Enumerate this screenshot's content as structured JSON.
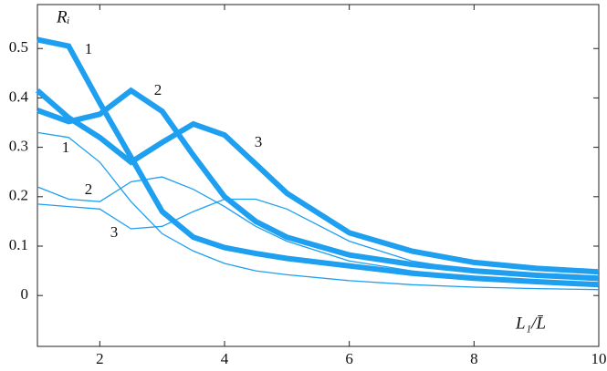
{
  "chart_data": {
    "type": "line",
    "ylabel": "Rᵢ",
    "xlabel": "L₁/L̄",
    "x": [
      1,
      1.5,
      2,
      2.5,
      3,
      3.5,
      4,
      4.5,
      5,
      6,
      7,
      8,
      9,
      10
    ],
    "series": [
      {
        "name": "1",
        "color": "#1e9ff0",
        "values": [
          0.518,
          0.505,
          0.39,
          0.28,
          0.17,
          0.118,
          0.097,
          0.085,
          0.075,
          0.06,
          0.045,
          0.035,
          0.028,
          0.022
        ]
      },
      {
        "name": "2",
        "color": "#1e9ff0",
        "values": [
          0.375,
          0.352,
          0.367,
          0.415,
          0.373,
          0.284,
          0.2,
          0.15,
          0.118,
          0.082,
          0.063,
          0.05,
          0.041,
          0.035
        ]
      },
      {
        "name": "3",
        "color": "#1e9ff0",
        "values": [
          0.415,
          0.36,
          0.32,
          0.27,
          0.31,
          0.347,
          0.325,
          0.266,
          0.207,
          0.127,
          0.09,
          0.067,
          0.055,
          0.048
        ]
      },
      {
        "name": "1",
        "color": "#1e9ff0",
        "values": [
          0.33,
          0.32,
          0.27,
          0.19,
          0.125,
          0.09,
          0.065,
          0.05,
          0.042,
          0.03,
          0.022,
          0.017,
          0.014,
          0.012
        ]
      },
      {
        "name": "2",
        "color": "#1e9ff0",
        "values": [
          0.22,
          0.195,
          0.19,
          0.23,
          0.24,
          0.215,
          0.18,
          0.14,
          0.11,
          0.07,
          0.05,
          0.035,
          0.027,
          0.02
        ]
      },
      {
        "name": "3",
        "color": "#1e9ff0",
        "values": [
          0.185,
          0.18,
          0.175,
          0.135,
          0.14,
          0.17,
          0.195,
          0.195,
          0.175,
          0.11,
          0.07,
          0.05,
          0.038,
          0.03
        ]
      }
    ],
    "xlim": [
      1,
      10
    ],
    "ylim": [
      -0.103,
      0.589
    ],
    "xticks": [
      2,
      4,
      6,
      8,
      10
    ],
    "yticks": [
      0,
      0.1,
      0.2,
      0.3,
      0.4,
      0.5
    ]
  }
}
